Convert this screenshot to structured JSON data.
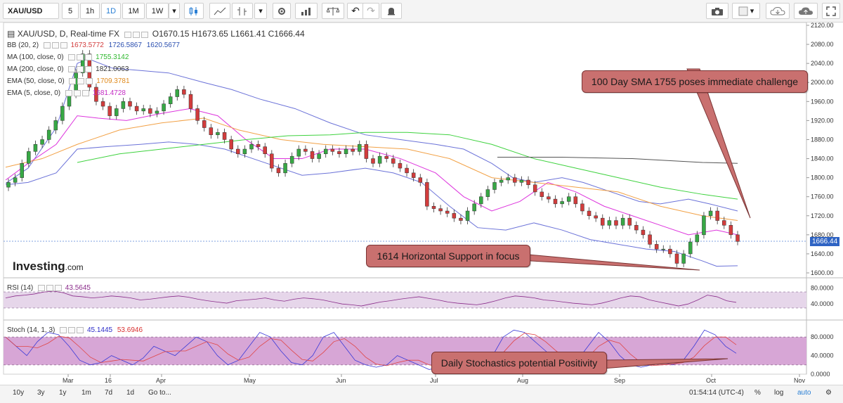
{
  "toolbar": {
    "symbol": "XAU/USD",
    "intervals": [
      "5",
      "1h",
      "1D",
      "1M",
      "1W"
    ],
    "active_interval": "1D"
  },
  "legend": {
    "main": {
      "label": "XAU/USD, D, Real-time FX",
      "open": "O1670.15",
      "high": "H1673.65",
      "low": "L1661.41",
      "close": "C1666.44"
    },
    "bb": {
      "label": "BB (20, 2)",
      "v1": "1673.5772",
      "v2": "1726.5867",
      "v3": "1620.5677"
    },
    "ma100": {
      "label": "MA (100, close, 0)",
      "v": "1755.3142"
    },
    "ma200": {
      "label": "MA (200, close, 0)",
      "v": "1821.0063"
    },
    "ema50": {
      "label": "EMA (50, close, 0)",
      "v": "1709.3781"
    },
    "ema5": {
      "label": "EMA (5, close, 0)",
      "v": "1681.4728"
    },
    "rsi": {
      "label": "RSI (14)",
      "v": "43.5645"
    },
    "stoch": {
      "label": "Stoch (14, 1, 3)",
      "v1": "45.1445",
      "v2": "53.6946"
    }
  },
  "colors": {
    "up": "#37a845",
    "down": "#d23c3c",
    "bb": "#6b72d8",
    "ma100": "#3ed23e",
    "ma200": "#555555",
    "ema50": "#f2a146",
    "ema5": "#dd34dd",
    "rsi": "#8a2b8a",
    "stoch_k": "#3a3ad8",
    "stoch_d": "#e04545",
    "callout": "#c9706f"
  },
  "watermark": {
    "brand": "Investing",
    "domain": ".com"
  },
  "price_axis": [
    "2120.00",
    "2080.00",
    "2040.00",
    "2000.00",
    "1960.00",
    "1920.00",
    "1880.00",
    "1840.00",
    "1800.00",
    "1760.00",
    "1720.00",
    "1680.00",
    "1640.00",
    "1600.00"
  ],
  "current_price": "1666.44",
  "rsi_axis": [
    "80.0000",
    "40.0000"
  ],
  "stoch_axis": [
    "80.0000",
    "40.0000",
    "0.0000"
  ],
  "time_axis": [
    "Mar",
    "16",
    "Apr",
    "May",
    "Jun",
    "Jul",
    "Aug",
    "Sep",
    "Oct",
    "Nov"
  ],
  "callouts": {
    "sma": "100 Day SMA 1755 poses immediate challenge",
    "support": "1614 Horizontal Support in focus",
    "stoch": "Daily Stochastics potential Positivity"
  },
  "bottom": {
    "ranges": [
      "10y",
      "3y",
      "1y",
      "1m",
      "7d",
      "1d",
      "Go to..."
    ],
    "time": "01:54:14 (UTC-4)",
    "percent": "%",
    "log": "log",
    "auto": "auto"
  }
}
